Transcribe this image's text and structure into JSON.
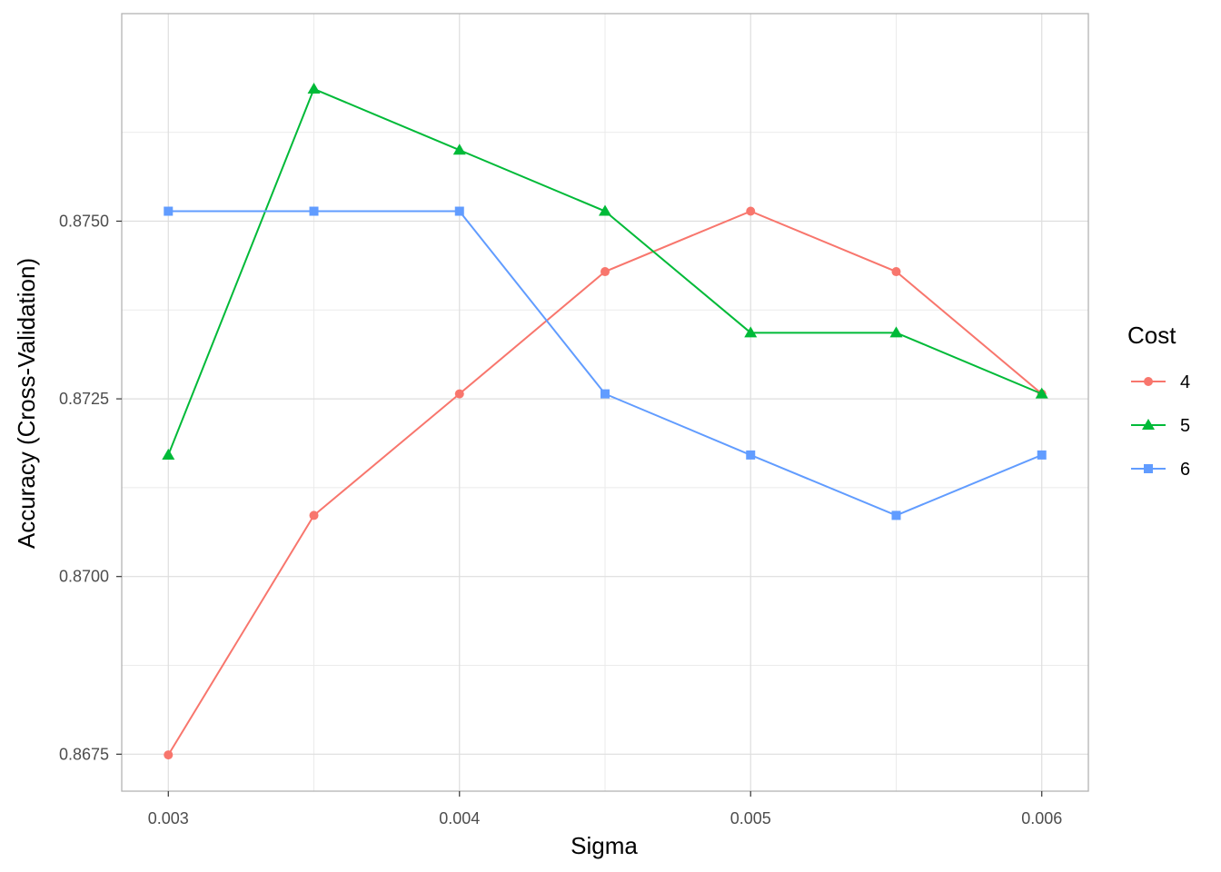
{
  "chart_data": {
    "type": "line",
    "xlabel": "Sigma",
    "ylabel": "Accuracy (Cross-Validation)",
    "x": [
      0.003,
      0.0035,
      0.004,
      0.0045,
      0.005,
      0.0055,
      0.006
    ],
    "x_ticks": [
      "0.003",
      "0.004",
      "0.005",
      "0.006"
    ],
    "x_tick_values": [
      0.003,
      0.004,
      0.005,
      0.006
    ],
    "y_ticks": [
      "0.8675",
      "0.8700",
      "0.8725",
      "0.8750"
    ],
    "y_tick_values": [
      0.8675,
      0.87,
      0.8725,
      0.875
    ],
    "xlim": [
      0.00284,
      0.00616
    ],
    "ylim": [
      0.86698,
      0.87792
    ],
    "grid": true,
    "legend": {
      "title": "Cost",
      "placement": "right"
    },
    "series": [
      {
        "name": "4",
        "color": "#F8766D",
        "marker": "circle",
        "values": [
          0.86749,
          0.87086,
          0.87257,
          0.87429,
          0.87514,
          0.87429,
          0.87257
        ]
      },
      {
        "name": "5",
        "color": "#00BA38",
        "marker": "triangle",
        "values": [
          0.87171,
          0.87686,
          0.876,
          0.87514,
          0.87343,
          0.87343,
          0.87257
        ]
      },
      {
        "name": "6",
        "color": "#619CFF",
        "marker": "square",
        "values": [
          0.87514,
          0.87514,
          0.87514,
          0.87257,
          0.87171,
          0.87086,
          0.87171
        ]
      }
    ]
  }
}
